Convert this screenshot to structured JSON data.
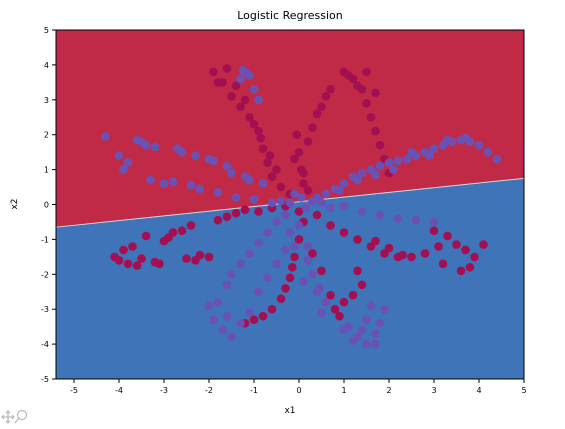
{
  "chart_data": {
    "type": "scatter",
    "title": "Logistic Regression",
    "xlabel": "x1",
    "ylabel": "x2",
    "xlim": [
      -5.4,
      5
    ],
    "ylim": [
      -5,
      5
    ],
    "x_ticks": [
      -5,
      -4,
      -3,
      -2,
      -1,
      0,
      1,
      2,
      3,
      4,
      5
    ],
    "y_ticks": [
      -5,
      -4,
      -3,
      -2,
      -1,
      0,
      1,
      2,
      3,
      4,
      5
    ],
    "x_tick_labels": [
      "-5",
      "-4",
      "-3",
      "-2",
      "-1",
      "0",
      "1",
      "2",
      "3",
      "4",
      "5"
    ],
    "y_tick_labels": [
      "-5",
      "-4",
      "-3",
      "-2",
      "-1",
      "0",
      "1",
      "2",
      "3",
      "4",
      "5"
    ],
    "grid": false,
    "decision_boundary": {
      "x": [
        -5.4,
        5
      ],
      "y": [
        -0.65,
        0.75
      ]
    },
    "regions": [
      {
        "side": "above",
        "color": "#c12a47"
      },
      {
        "side": "below",
        "color": "#3f74b9"
      }
    ],
    "petal_angles_deg": [
      45,
      90,
      135,
      0,
      180,
      225,
      270,
      315
    ],
    "series": [
      {
        "color": "#a31052",
        "points": [
          [
            -4.1,
            -1.5
          ],
          [
            -3.9,
            -1.3
          ],
          [
            -3.7,
            -1.2
          ],
          [
            -3.5,
            -1.55
          ],
          [
            -3.2,
            -1.65
          ],
          [
            -3.0,
            -1.05
          ],
          [
            -2.8,
            -0.8
          ],
          [
            -2.6,
            -0.75
          ],
          [
            -2.4,
            -0.6
          ],
          [
            -2.2,
            -1.45
          ],
          [
            -2.0,
            -1.5
          ],
          [
            -1.8,
            -0.45
          ],
          [
            -1.6,
            -0.35
          ],
          [
            -1.4,
            -0.25
          ],
          [
            -1.2,
            -0.15
          ],
          [
            -0.9,
            -0.2
          ],
          [
            -0.6,
            -0.1
          ],
          [
            -0.3,
            -0.05
          ],
          [
            -3.8,
            -1.7
          ],
          [
            -3.4,
            -0.9
          ],
          [
            -2.9,
            -0.95
          ],
          [
            -2.5,
            -1.55
          ],
          [
            -2.3,
            -1.6
          ],
          [
            -4.0,
            -1.6
          ],
          [
            -3.6,
            -1.75
          ],
          [
            -3.1,
            -1.7
          ],
          [
            -1.9,
            3.8
          ],
          [
            -1.7,
            3.5
          ],
          [
            -1.5,
            3.1
          ],
          [
            -1.3,
            2.8
          ],
          [
            -1.1,
            2.5
          ],
          [
            -0.9,
            2.1
          ],
          [
            -0.8,
            1.6
          ],
          [
            -0.7,
            1.2
          ],
          [
            -0.6,
            0.8
          ],
          [
            -0.4,
            0.5
          ],
          [
            -0.2,
            0.3
          ],
          [
            -1.8,
            3.5
          ],
          [
            -1.6,
            3.9
          ],
          [
            -1.4,
            3.4
          ],
          [
            -1.2,
            3.0
          ],
          [
            -1.0,
            2.3
          ],
          [
            -0.85,
            1.9
          ],
          [
            -0.65,
            1.4
          ],
          [
            -0.5,
            1.0
          ],
          [
            1.0,
            3.8
          ],
          [
            1.2,
            3.6
          ],
          [
            1.4,
            3.3
          ],
          [
            1.5,
            2.9
          ],
          [
            1.6,
            2.5
          ],
          [
            1.7,
            2.1
          ],
          [
            1.8,
            1.7
          ],
          [
            1.9,
            1.3
          ],
          [
            2.0,
            0.9
          ],
          [
            1.5,
            3.8
          ],
          [
            1.3,
            3.4
          ],
          [
            1.7,
            3.2
          ],
          [
            1.1,
            3.7
          ],
          [
            0.2,
            0.4
          ],
          [
            0.1,
            0.6
          ],
          [
            0.05,
            1.0
          ],
          [
            0.0,
            1.5
          ],
          [
            -0.05,
            2.0
          ],
          [
            0.1,
            0.9
          ],
          [
            -0.1,
            1.3
          ],
          [
            0.3,
            2.2
          ],
          [
            0.5,
            2.8
          ],
          [
            0.6,
            3.1
          ],
          [
            0.7,
            3.3
          ],
          [
            0.4,
            2.6
          ],
          [
            0.2,
            1.8
          ],
          [
            0.0,
            -0.2
          ],
          [
            0.1,
            -0.5
          ],
          [
            0.0,
            -1.0
          ],
          [
            -0.1,
            -1.5
          ],
          [
            -0.15,
            -1.8
          ],
          [
            -0.2,
            -2.1
          ],
          [
            -0.3,
            -2.4
          ],
          [
            -0.4,
            -2.7
          ],
          [
            -0.6,
            -3.0
          ],
          [
            -0.8,
            -3.2
          ],
          [
            -1.0,
            -3.3
          ],
          [
            -1.2,
            -3.4
          ],
          [
            0.4,
            -0.3
          ],
          [
            0.7,
            -0.6
          ],
          [
            1.0,
            -0.8
          ],
          [
            1.3,
            -1.0
          ],
          [
            1.6,
            -1.2
          ],
          [
            1.9,
            -1.4
          ],
          [
            2.2,
            -1.5
          ],
          [
            2.5,
            -1.5
          ],
          [
            2.8,
            -1.4
          ],
          [
            3.1,
            -1.2
          ],
          [
            3.3,
            -0.9
          ],
          [
            3.0,
            -0.75
          ],
          [
            3.5,
            -1.15
          ],
          [
            3.7,
            -1.3
          ],
          [
            3.9,
            -1.5
          ],
          [
            3.8,
            -1.8
          ],
          [
            4.1,
            -1.15
          ],
          [
            3.6,
            -1.9
          ],
          [
            3.2,
            -1.7
          ],
          [
            2.0,
            -1.25
          ],
          [
            2.3,
            -1.45
          ],
          [
            1.7,
            -1.05
          ],
          [
            1.0,
            -2.8
          ],
          [
            1.2,
            -2.6
          ],
          [
            1.4,
            -2.3
          ],
          [
            1.3,
            -1.9
          ],
          [
            0.7,
            -2.6
          ],
          [
            0.8,
            -3.0
          ],
          [
            0.9,
            -3.2
          ],
          [
            0.3,
            -1.4
          ],
          [
            0.5,
            -1.9
          ]
        ]
      },
      {
        "color": "#6a52b4",
        "points": [
          [
            -4.3,
            1.95
          ],
          [
            -4.0,
            1.4
          ],
          [
            -3.8,
            1.2
          ],
          [
            -3.6,
            1.85
          ],
          [
            -3.4,
            1.7
          ],
          [
            -3.2,
            1.65
          ],
          [
            -3.0,
            0.6
          ],
          [
            -2.8,
            0.65
          ],
          [
            -2.6,
            1.5
          ],
          [
            -2.4,
            0.55
          ],
          [
            -2.2,
            0.45
          ],
          [
            -2.0,
            1.3
          ],
          [
            -1.8,
            0.35
          ],
          [
            -1.6,
            1.1
          ],
          [
            -1.4,
            0.2
          ],
          [
            -1.2,
            0.8
          ],
          [
            -1.0,
            0.15
          ],
          [
            -0.8,
            0.6
          ],
          [
            -0.6,
            0.05
          ],
          [
            -0.4,
            0.1
          ],
          [
            -3.9,
            1.0
          ],
          [
            -3.5,
            1.8
          ],
          [
            -3.3,
            0.7
          ],
          [
            -2.7,
            1.6
          ],
          [
            -2.3,
            1.4
          ],
          [
            -1.9,
            1.25
          ],
          [
            -1.5,
            0.9
          ],
          [
            -1.1,
            0.7
          ],
          [
            4.2,
            1.5
          ],
          [
            4.0,
            1.7
          ],
          [
            3.8,
            1.8
          ],
          [
            3.6,
            1.85
          ],
          [
            3.4,
            1.8
          ],
          [
            3.2,
            1.7
          ],
          [
            3.0,
            1.6
          ],
          [
            2.8,
            1.5
          ],
          [
            2.6,
            1.4
          ],
          [
            2.4,
            1.3
          ],
          [
            2.2,
            1.25
          ],
          [
            2.0,
            1.2
          ],
          [
            1.8,
            1.1
          ],
          [
            1.6,
            1.0
          ],
          [
            1.4,
            0.9
          ],
          [
            1.2,
            0.8
          ],
          [
            1.0,
            0.6
          ],
          [
            0.8,
            0.45
          ],
          [
            0.6,
            0.3
          ],
          [
            0.4,
            0.2
          ],
          [
            4.4,
            1.3
          ],
          [
            3.7,
            1.9
          ],
          [
            3.3,
            1.85
          ],
          [
            2.9,
            1.4
          ],
          [
            2.5,
            1.5
          ],
          [
            2.1,
            1.0
          ],
          [
            1.7,
            0.85
          ],
          [
            1.3,
            0.7
          ],
          [
            0.9,
            0.4
          ],
          [
            -1.3,
            3.6
          ],
          [
            -1.2,
            3.8
          ],
          [
            -1.0,
            3.3
          ],
          [
            -0.9,
            3.0
          ],
          [
            -1.1,
            3.7
          ],
          [
            -1.25,
            3.85
          ],
          [
            -0.3,
            -0.3
          ],
          [
            -0.5,
            -0.5
          ],
          [
            -0.7,
            -0.8
          ],
          [
            -0.9,
            -1.1
          ],
          [
            -1.1,
            -1.4
          ],
          [
            -1.3,
            -1.7
          ],
          [
            -1.5,
            -2.0
          ],
          [
            -1.6,
            -2.3
          ],
          [
            -1.8,
            -2.8
          ],
          [
            -1.9,
            -3.3
          ],
          [
            -1.7,
            -3.6
          ],
          [
            -1.5,
            -3.8
          ],
          [
            -1.3,
            -3.4
          ],
          [
            -1.1,
            -3.1
          ],
          [
            -1.6,
            -3.2
          ],
          [
            -2.0,
            -2.9
          ],
          [
            -0.2,
            -0.8
          ],
          [
            -0.3,
            -1.3
          ],
          [
            -0.5,
            -1.7
          ],
          [
            -0.7,
            -2.1
          ],
          [
            -0.9,
            -2.5
          ],
          [
            0.2,
            -1.6
          ],
          [
            0.3,
            -2.0
          ],
          [
            0.45,
            -2.4
          ],
          [
            0.6,
            -2.8
          ],
          [
            0.5,
            -3.1
          ],
          [
            0.4,
            -2.5
          ],
          [
            0.2,
            -1.2
          ],
          [
            0.0,
            -0.6
          ],
          [
            -0.1,
            -1.2
          ],
          [
            0.1,
            -2.2
          ],
          [
            1.1,
            -3.5
          ],
          [
            1.3,
            -3.8
          ],
          [
            1.5,
            -4.0
          ],
          [
            1.7,
            -3.7
          ],
          [
            1.8,
            -3.4
          ],
          [
            1.9,
            -3.0
          ],
          [
            1.6,
            -2.9
          ],
          [
            1.4,
            -3.6
          ],
          [
            1.2,
            -3.9
          ],
          [
            1.0,
            -3.6
          ],
          [
            1.7,
            -4.0
          ],
          [
            1.5,
            -3.3
          ],
          [
            -0.1,
            0.3
          ],
          [
            0.15,
            -0.1
          ],
          [
            0.3,
            0.1
          ],
          [
            -0.2,
            0.05
          ],
          [
            0.05,
            0.2
          ],
          [
            0.5,
            0.05
          ],
          [
            0.7,
            -0.1
          ],
          [
            1.0,
            -0.05
          ],
          [
            1.4,
            -0.2
          ],
          [
            1.8,
            -0.3
          ],
          [
            2.2,
            -0.4
          ],
          [
            2.6,
            -0.45
          ],
          [
            3.0,
            -0.5
          ]
        ]
      }
    ]
  },
  "ui": {
    "toolbar_icon": "pan-zoom-icon"
  }
}
